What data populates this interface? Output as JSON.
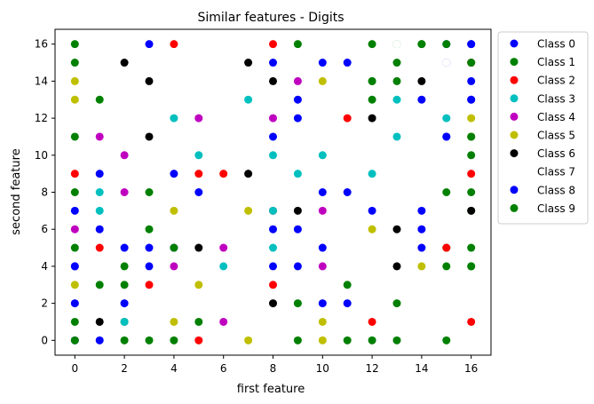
{
  "chart_data": {
    "type": "scatter",
    "title": "Similar features - Digits",
    "xlabel": "first feature",
    "ylabel": "second feature",
    "xlim": [
      -0.8,
      16.8
    ],
    "ylim": [
      -0.8,
      16.8
    ],
    "xticks": [
      "0",
      "2",
      "4",
      "6",
      "8",
      "10",
      "12",
      "14",
      "16"
    ],
    "yticks": [
      "0",
      "2",
      "4",
      "6",
      "8",
      "10",
      "12",
      "14",
      "16"
    ],
    "grid": false,
    "legend_position": "outside-top-right",
    "series": [
      {
        "name": "Class 0",
        "color": "#0000ff",
        "points": [
          [
            3,
            16
          ],
          [
            15,
            16
          ],
          [
            16,
            16
          ],
          [
            15,
            15
          ],
          [
            10,
            15
          ],
          [
            11,
            15
          ],
          [
            16,
            14
          ],
          [
            8,
            15
          ],
          [
            9,
            13
          ],
          [
            16,
            13
          ],
          [
            9,
            12
          ],
          [
            14,
            13
          ],
          [
            8,
            11
          ],
          [
            15,
            11
          ],
          [
            1,
            9
          ],
          [
            4,
            9
          ],
          [
            0,
            7
          ],
          [
            1,
            6
          ],
          [
            5,
            8
          ],
          [
            10,
            8
          ],
          [
            11,
            8
          ],
          [
            12,
            7
          ],
          [
            14,
            7
          ],
          [
            8,
            6
          ],
          [
            9,
            6
          ],
          [
            14,
            6
          ],
          [
            2,
            5
          ],
          [
            3,
            5
          ],
          [
            4,
            5
          ],
          [
            10,
            5
          ],
          [
            0,
            4
          ],
          [
            3,
            4
          ],
          [
            8,
            4
          ],
          [
            9,
            4
          ],
          [
            14,
            5
          ],
          [
            0,
            2
          ],
          [
            2,
            2
          ],
          [
            10,
            2
          ],
          [
            11,
            2
          ],
          [
            0,
            0
          ],
          [
            1,
            0
          ]
        ]
      },
      {
        "name": "Class 1",
        "color": "#008000",
        "points": [
          [
            0,
            16
          ],
          [
            9,
            16
          ],
          [
            12,
            16
          ],
          [
            13,
            16
          ],
          [
            14,
            16
          ],
          [
            0,
            15
          ],
          [
            13,
            15
          ],
          [
            16,
            15
          ],
          [
            12,
            14
          ],
          [
            13,
            14
          ],
          [
            1,
            13
          ],
          [
            12,
            13
          ],
          [
            0,
            11
          ],
          [
            16,
            11
          ],
          [
            16,
            10
          ],
          [
            0,
            8
          ],
          [
            3,
            8
          ],
          [
            15,
            8
          ],
          [
            16,
            8
          ],
          [
            3,
            6
          ],
          [
            16,
            7
          ],
          [
            2,
            4
          ],
          [
            4,
            5
          ],
          [
            0,
            5
          ],
          [
            15,
            5
          ],
          [
            16,
            5
          ],
          [
            15,
            4
          ],
          [
            16,
            4
          ],
          [
            1,
            3
          ],
          [
            2,
            3
          ],
          [
            11,
            3
          ],
          [
            13,
            2
          ],
          [
            0,
            1
          ],
          [
            2,
            1
          ],
          [
            5,
            1
          ],
          [
            9,
            2
          ],
          [
            0,
            0
          ],
          [
            2,
            0
          ],
          [
            3,
            0
          ],
          [
            4,
            0
          ],
          [
            9,
            0
          ],
          [
            11,
            0
          ],
          [
            12,
            0
          ],
          [
            13,
            0
          ],
          [
            15,
            0
          ]
        ]
      },
      {
        "name": "Class 2",
        "color": "#ff0000",
        "points": [
          [
            4,
            16
          ],
          [
            8,
            16
          ],
          [
            16,
            15
          ],
          [
            11,
            12
          ],
          [
            0,
            9
          ],
          [
            5,
            9
          ],
          [
            6,
            9
          ],
          [
            16,
            9
          ],
          [
            8,
            7
          ],
          [
            1,
            5
          ],
          [
            15,
            5
          ],
          [
            3,
            3
          ],
          [
            8,
            3
          ],
          [
            12,
            1
          ],
          [
            16,
            1
          ],
          [
            5,
            0
          ]
        ]
      },
      {
        "name": "Class 3",
        "color": "#00bfbf",
        "points": [
          [
            7,
            13
          ],
          [
            13,
            13
          ],
          [
            4,
            12
          ],
          [
            15,
            12
          ],
          [
            13,
            11
          ],
          [
            5,
            10
          ],
          [
            8,
            10
          ],
          [
            10,
            10
          ],
          [
            9,
            9
          ],
          [
            12,
            9
          ],
          [
            1,
            8
          ],
          [
            1,
            7
          ],
          [
            8,
            5
          ],
          [
            6,
            4
          ],
          [
            2,
            1
          ],
          [
            8,
            7
          ]
        ]
      },
      {
        "name": "Class 4",
        "color": "#bf00bf",
        "points": [
          [
            9,
            14
          ],
          [
            5,
            12
          ],
          [
            8,
            12
          ],
          [
            1,
            11
          ],
          [
            2,
            10
          ],
          [
            2,
            8
          ],
          [
            10,
            7
          ],
          [
            0,
            6
          ],
          [
            6,
            5
          ],
          [
            4,
            4
          ],
          [
            10,
            4
          ],
          [
            6,
            1
          ]
        ]
      },
      {
        "name": "Class 5",
        "color": "#bfbf00",
        "points": [
          [
            0,
            14
          ],
          [
            10,
            14
          ],
          [
            0,
            13
          ],
          [
            16,
            12
          ],
          [
            16,
            11
          ],
          [
            4,
            7
          ],
          [
            7,
            7
          ],
          [
            12,
            6
          ],
          [
            14,
            4
          ],
          [
            0,
            3
          ],
          [
            5,
            3
          ],
          [
            4,
            1
          ],
          [
            10,
            1
          ],
          [
            7,
            0
          ],
          [
            10,
            0
          ]
        ]
      },
      {
        "name": "Class 6",
        "color": "#000000",
        "points": [
          [
            2,
            15
          ],
          [
            7,
            15
          ],
          [
            3,
            14
          ],
          [
            8,
            14
          ],
          [
            14,
            14
          ],
          [
            12,
            12
          ],
          [
            3,
            11
          ],
          [
            7,
            9
          ],
          [
            9,
            7
          ],
          [
            16,
            7
          ],
          [
            13,
            6
          ],
          [
            5,
            5
          ],
          [
            13,
            4
          ],
          [
            8,
            2
          ],
          [
            1,
            1
          ]
        ]
      },
      {
        "name": "Class 7",
        "color": "#ffffff",
        "points": [
          [
            7,
            16
          ],
          [
            11,
            16
          ],
          [
            13,
            16
          ],
          [
            15,
            15
          ],
          [
            13,
            12
          ],
          [
            11,
            11
          ],
          [
            8,
            8
          ],
          [
            7,
            3
          ],
          [
            6,
            0
          ]
        ]
      },
      {
        "name": "Class 8",
        "color": "#0000ff",
        "points": [
          [
            16,
            16
          ],
          [
            16,
            13
          ],
          [
            15,
            11
          ],
          [
            0,
            4
          ]
        ]
      },
      {
        "name": "Class 9",
        "color": "#008000",
        "points": [
          [
            15,
            16
          ],
          [
            16,
            15
          ],
          [
            12,
            14
          ],
          [
            14,
            16
          ],
          [
            16,
            11
          ],
          [
            16,
            4
          ]
        ]
      }
    ]
  }
}
